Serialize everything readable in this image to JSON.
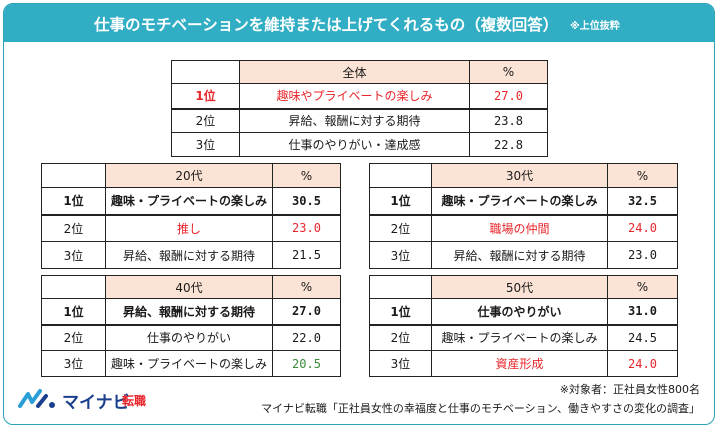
{
  "title": {
    "main": "仕事のモチベーションを維持または上げてくれるもの（複数回答）",
    "note": "※上位抜粋"
  },
  "colors": {
    "accent": "#32aec4",
    "header_fill": "#fbe4d6",
    "highlight": "#e8262b",
    "green": "#3b8c3a"
  },
  "tables": {
    "overall": {
      "group": "全体",
      "pct": "%",
      "rows": [
        {
          "rank": "1位",
          "item": "趣味やプライベートの楽しみ",
          "value": "27.0"
        },
        {
          "rank": "2位",
          "item": "昇給、報酬に対する期待",
          "value": "23.8"
        },
        {
          "rank": "3位",
          "item": "仕事のやりがい・達成感",
          "value": "22.8"
        }
      ]
    },
    "age20": {
      "group": "20代",
      "pct": "%",
      "rows": [
        {
          "rank": "1位",
          "item": "趣味・プライベートの楽しみ",
          "value": "30.5"
        },
        {
          "rank": "2位",
          "item": "推し",
          "value": "23.0"
        },
        {
          "rank": "3位",
          "item": "昇給、報酬に対する期待",
          "value": "21.5"
        }
      ]
    },
    "age30": {
      "group": "30代",
      "pct": "%",
      "rows": [
        {
          "rank": "1位",
          "item": "趣味・プライベートの楽しみ",
          "value": "32.5"
        },
        {
          "rank": "2位",
          "item": "職場の仲間",
          "value": "24.0"
        },
        {
          "rank": "3位",
          "item": "昇給、報酬に対する期待",
          "value": "23.0"
        }
      ]
    },
    "age40": {
      "group": "40代",
      "pct": "%",
      "rows": [
        {
          "rank": "1位",
          "item": "昇給、報酬に対する期待",
          "value": "27.0"
        },
        {
          "rank": "2位",
          "item": "仕事のやりがい",
          "value": "22.0"
        },
        {
          "rank": "3位",
          "item": "趣味・プライベートの楽しみ",
          "value": "20.5"
        }
      ]
    },
    "age50": {
      "group": "50代",
      "pct": "%",
      "rows": [
        {
          "rank": "1位",
          "item": "仕事のやりがい",
          "value": "31.0"
        },
        {
          "rank": "2位",
          "item": "趣味・プライベートの楽しみ",
          "value": "24.5"
        },
        {
          "rank": "3位",
          "item": "資産形成",
          "value": "24.0"
        }
      ]
    }
  },
  "footer": {
    "target": "※対象者：正社員女性800名",
    "source": "マイナビ転職「正社員女性の幸福度と仕事のモチベーション、働きやすさの変化の調査」"
  },
  "logo": {
    "name": "マイナビ",
    "sub": "転職"
  }
}
